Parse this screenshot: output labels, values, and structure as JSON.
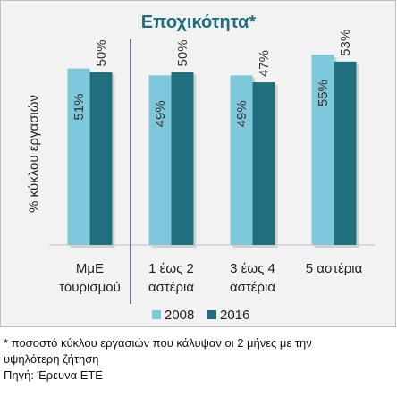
{
  "chart_data": {
    "type": "bar",
    "title": "Εποχικότητα*",
    "ylabel": "% κύκλου εργασιών",
    "categories": [
      [
        "ΜμΕ",
        "τουρισμού"
      ],
      [
        "1 έως 2",
        "αστέρια"
      ],
      [
        "3 έως 4",
        "αστέρια"
      ],
      [
        "5 αστέρια"
      ]
    ],
    "series": [
      {
        "name": "2008",
        "values": [
          51,
          49,
          49,
          55
        ],
        "labels": [
          "51%",
          "49%",
          "49%",
          "55%"
        ],
        "color": "#7fc8db"
      },
      {
        "name": "2016",
        "values": [
          50,
          50,
          47,
          53
        ],
        "labels": [
          "50%",
          "50%",
          "47%",
          "53%"
        ],
        "color": "#1f6f7f"
      }
    ],
    "ylim": [
      0,
      62
    ],
    "grid": false,
    "legend": "bottom",
    "separator_after_category": 0
  },
  "footnote": {
    "line1": "* ποσοστό κύκλου εργασιών που κάλυψαν οι 2 μήνες με την",
    "line2": "υψηλότερη ζήτηση",
    "source": "Πηγή: Έρευνα ΕΤΕ"
  }
}
